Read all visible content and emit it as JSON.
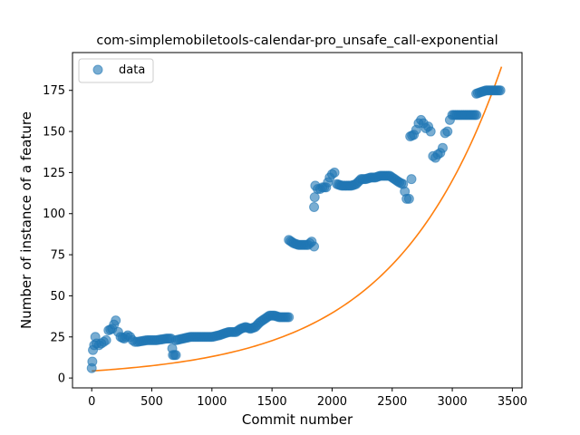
{
  "chart_data": {
    "type": "scatter",
    "title": "com-simplemobiletools-calendar-pro_unsafe_call-exponential",
    "xlabel": "Commit number",
    "ylabel": "Number of instance of a feature",
    "xlim": [
      -160,
      3580
    ],
    "ylim": [
      -6,
      198
    ],
    "xticks": [
      0,
      500,
      1000,
      1500,
      2000,
      2500,
      3000,
      3500
    ],
    "yticks": [
      0,
      25,
      50,
      75,
      100,
      125,
      150,
      175
    ],
    "grid": false,
    "legend": {
      "position": "top-left",
      "entries": [
        "data"
      ]
    },
    "colors": {
      "data": "#1f77b4",
      "fit": "#ff7f0e"
    },
    "series": [
      {
        "name": "data",
        "kind": "scatter",
        "segments": [
          [
            [
              0,
              6
            ],
            [
              5,
              10
            ],
            [
              10,
              17
            ],
            [
              20,
              20
            ],
            [
              30,
              25
            ],
            [
              40,
              21
            ],
            [
              60,
              20
            ],
            [
              80,
              21
            ],
            [
              100,
              22
            ],
            [
              120,
              23
            ],
            [
              140,
              29
            ],
            [
              170,
              30
            ],
            [
              200,
              35
            ],
            [
              220,
              28
            ],
            [
              240,
              25
            ],
            [
              270,
              24
            ],
            [
              300,
              26
            ],
            [
              320,
              25
            ],
            [
              340,
              23
            ],
            [
              360,
              22
            ]
          ],
          [
            [
              380,
              22
            ],
            [
              460,
              23
            ],
            [
              540,
              23
            ],
            [
              620,
              24
            ],
            [
              660,
              24
            ]
          ],
          [
            [
              670,
              18
            ],
            [
              675,
              14
            ],
            [
              700,
              14
            ]
          ],
          [
            [
              700,
              23
            ],
            [
              760,
              24
            ],
            [
              820,
              25
            ],
            [
              880,
              25
            ],
            [
              940,
              25
            ],
            [
              1000,
              25
            ],
            [
              1060,
              26
            ],
            [
              1100,
              27
            ],
            [
              1140,
              28
            ],
            [
              1200,
              28
            ],
            [
              1240,
              30
            ],
            [
              1280,
              31
            ],
            [
              1320,
              30
            ],
            [
              1360,
              31
            ],
            [
              1400,
              34
            ],
            [
              1440,
              36
            ],
            [
              1480,
              38
            ],
            [
              1520,
              38
            ],
            [
              1560,
              37
            ],
            [
              1600,
              37
            ],
            [
              1640,
              37
            ]
          ],
          [
            [
              1640,
              84
            ],
            [
              1680,
              82
            ],
            [
              1720,
              81
            ],
            [
              1760,
              81
            ],
            [
              1800,
              81
            ],
            [
              1830,
              83
            ],
            [
              1850,
              80
            ]
          ],
          [
            [
              1850,
              104
            ],
            [
              1855,
              110
            ],
            [
              1860,
              117
            ],
            [
              1880,
              115
            ],
            [
              1900,
              115
            ],
            [
              1920,
              116
            ],
            [
              1950,
              116
            ],
            [
              1980,
              122
            ],
            [
              2000,
              124
            ],
            [
              2020,
              125
            ],
            [
              2040,
              118
            ],
            [
              2080,
              117
            ],
            [
              2120,
              117
            ],
            [
              2160,
              117
            ],
            [
              2200,
              118
            ],
            [
              2240,
              121
            ],
            [
              2280,
              121
            ],
            [
              2320,
              122
            ],
            [
              2360,
              122
            ],
            [
              2400,
              123
            ],
            [
              2440,
              123
            ],
            [
              2480,
              123
            ],
            [
              2520,
              121
            ],
            [
              2560,
              119
            ],
            [
              2590,
              118
            ],
            [
              2620,
              109
            ],
            [
              2640,
              109
            ],
            [
              2660,
              121
            ]
          ],
          [
            [
              2650,
              147
            ],
            [
              2680,
              148
            ],
            [
              2700,
              151
            ],
            [
              2720,
              155
            ],
            [
              2740,
              157
            ],
            [
              2760,
              155
            ],
            [
              2780,
              152
            ],
            [
              2800,
              153
            ],
            [
              2820,
              150
            ],
            [
              2840,
              135
            ],
            [
              2860,
              134
            ],
            [
              2880,
              136
            ],
            [
              2900,
              137
            ],
            [
              2920,
              140
            ],
            [
              2940,
              149
            ],
            [
              2960,
              150
            ],
            [
              2980,
              157
            ],
            [
              3000,
              160
            ],
            [
              3040,
              160
            ],
            [
              3080,
              160
            ],
            [
              3120,
              160
            ],
            [
              3160,
              160
            ],
            [
              3200,
              160
            ]
          ],
          [
            [
              3200,
              173
            ],
            [
              3240,
              174
            ],
            [
              3280,
              175
            ],
            [
              3320,
              175
            ],
            [
              3360,
              175
            ],
            [
              3400,
              175
            ]
          ]
        ]
      },
      {
        "name": "fit",
        "kind": "line",
        "fit": {
          "model": "exponential",
          "a": 4.3,
          "b": 0.00111,
          "xmin": 0,
          "xmax": 3410
        }
      }
    ]
  }
}
